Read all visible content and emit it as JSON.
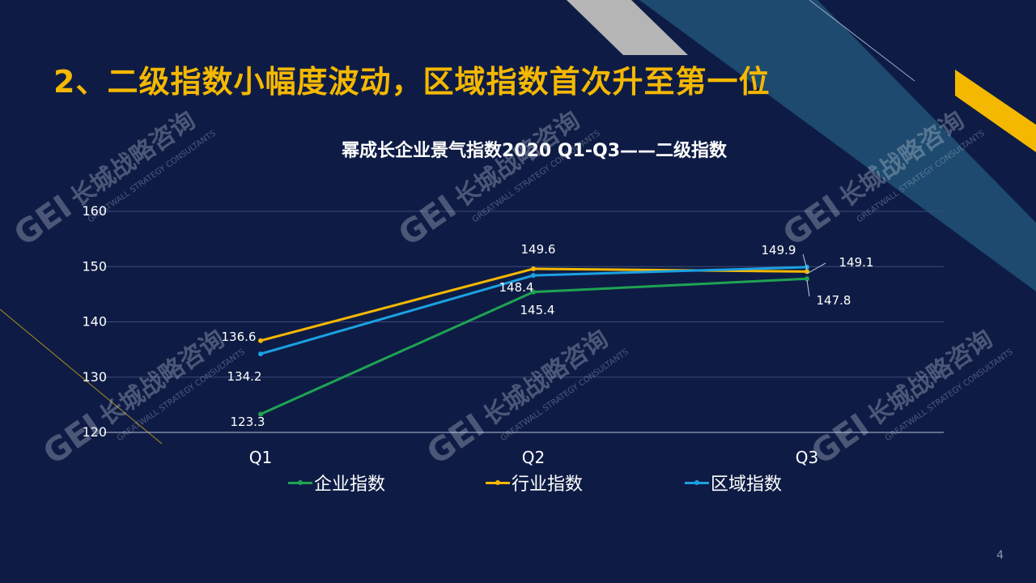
{
  "slide": {
    "heading": "2、二级指数小幅度波动，区域指数首次升至第一位",
    "page_number": "4",
    "watermark": {
      "logo": "GEI",
      "cn": "长城战略咨询",
      "en": "GREATWALL STRATEGY CONSULTANTS"
    }
  },
  "colors": {
    "background": "#0e1c45",
    "accent": "#f5b800",
    "stripe_teal": "#1d4a6e",
    "stripe_grey": "#b5b5b5"
  },
  "chart_data": {
    "type": "line",
    "title": "幂成长企业景气指数2020 Q1-Q3——二级指数",
    "categories": [
      "Q1",
      "Q2",
      "Q3"
    ],
    "y_ticks": [
      "120",
      "130",
      "140",
      "150",
      "160"
    ],
    "ylim": [
      120,
      160
    ],
    "grid": true,
    "legend_position": "bottom",
    "series": [
      {
        "name": "企业指数",
        "color": "#1fa352",
        "values": [
          123.3,
          145.4,
          147.8
        ],
        "labels": [
          "123.3",
          "145.4",
          "147.8"
        ]
      },
      {
        "name": "行业指数",
        "color": "#f5b800",
        "values": [
          136.6,
          149.6,
          149.1
        ],
        "labels": [
          "136.6",
          "149.6",
          "149.1"
        ]
      },
      {
        "name": "区域指数",
        "color": "#1ba1e2",
        "values": [
          134.2,
          148.4,
          149.9
        ],
        "labels": [
          "134.2",
          "148.4",
          "149.9"
        ]
      }
    ]
  }
}
